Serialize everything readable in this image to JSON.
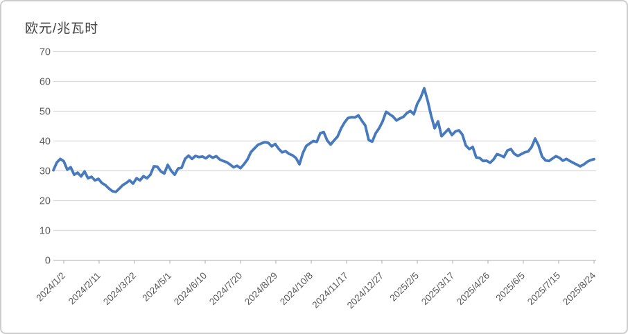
{
  "chart_title": "欧元/兆瓦时",
  "colors": {
    "line": "#4779BD",
    "gridline": "#D9D9D9",
    "axis": "#BFBFBF",
    "tick_label": "#595959",
    "title_text": "#3F3F3F",
    "frame_border": "#CDCDCD",
    "background": "#FFFFFF"
  },
  "chart_data": {
    "type": "line",
    "title": "欧元/兆瓦时",
    "xlabel": "",
    "ylabel": "欧元/兆瓦时",
    "ylim": [
      0,
      70
    ],
    "y_ticks": [
      0,
      10,
      20,
      30,
      40,
      50,
      60,
      70
    ],
    "grid": true,
    "legend_position": "none",
    "x_tick_labels": [
      "2024/1/2",
      "2024/2/11",
      "2024/3/22",
      "2024/5/1",
      "2024/6/10",
      "2024/7/20",
      "2024/8/29",
      "2024/10/8",
      "2024/11/17",
      "2024/12/27",
      "2025/2/5",
      "2025/3/17",
      "2025/4/26",
      "2025/6/5",
      "2025/7/15",
      "2025/8/24"
    ],
    "x_start_label": "2024/1/2",
    "x_end_label": "2025/8/24",
    "sampling_note": "daily price series sampled at ~4-day intervals, values in EUR/MWh read from gridlines",
    "series": [
      {
        "name": "欧元/兆瓦时",
        "color": "#4779BD",
        "values": [
          30.2,
          32.8,
          34.0,
          33.2,
          30.4,
          31.2,
          28.7,
          29.4,
          28.1,
          29.8,
          27.5,
          28.0,
          26.8,
          27.3,
          25.9,
          25.2,
          24.1,
          23.2,
          22.9,
          24.0,
          25.2,
          25.9,
          26.8,
          25.7,
          27.5,
          26.8,
          28.2,
          27.5,
          28.7,
          31.5,
          31.4,
          29.8,
          29.1,
          32.0,
          30.0,
          28.7,
          30.8,
          31.0,
          34.0,
          35.1,
          34.0,
          35.0,
          34.6,
          34.8,
          34.2,
          35.1,
          34.4,
          34.9,
          33.8,
          33.3,
          32.9,
          32.1,
          31.2,
          31.7,
          30.9,
          32.2,
          33.8,
          36.3,
          37.5,
          38.7,
          39.2,
          39.6,
          39.4,
          38.2,
          39.0,
          37.4,
          36.2,
          36.6,
          35.7,
          35.2,
          34.3,
          32.2,
          36.0,
          38.4,
          39.2,
          40.0,
          39.7,
          42.6,
          43.0,
          40.2,
          38.8,
          40.2,
          41.5,
          44.2,
          46.2,
          47.7,
          48.0,
          47.9,
          48.6,
          46.8,
          45.2,
          40.3,
          39.8,
          42.6,
          44.3,
          46.6,
          49.8,
          49.0,
          48.2,
          46.9,
          47.6,
          48.1,
          49.4,
          50.1,
          49.0,
          52.5,
          54.6,
          57.7,
          53.5,
          48.5,
          44.3,
          46.6,
          41.6,
          42.8,
          44.0,
          42.0,
          43.2,
          43.6,
          42.2,
          38.5,
          37.3,
          38.0,
          34.5,
          34.3,
          33.3,
          33.4,
          32.7,
          33.8,
          35.6,
          35.2,
          34.6,
          36.8,
          37.3,
          35.7,
          35.0,
          35.6,
          36.2,
          36.5,
          38.0,
          40.8,
          38.5,
          34.8,
          33.5,
          33.3,
          34.1,
          34.9,
          34.4,
          33.4,
          34.0,
          33.3,
          32.7,
          32.1,
          31.5,
          32.1,
          33.0,
          33.6,
          33.9
        ]
      }
    ]
  }
}
